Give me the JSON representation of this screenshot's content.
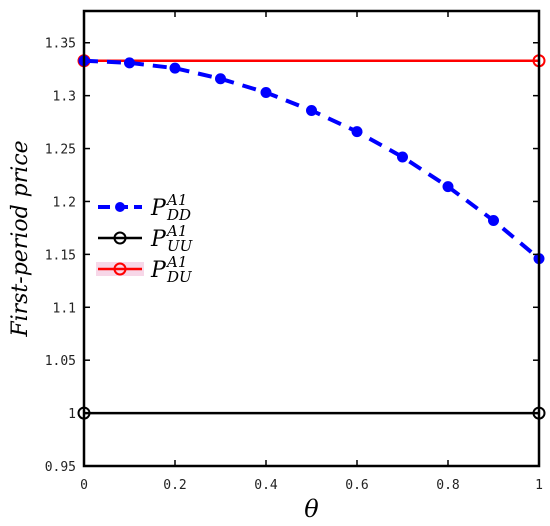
{
  "chart_data": {
    "type": "line",
    "xlabel": "θ",
    "ylabel": "First-period price",
    "xlim": [
      0,
      1
    ],
    "ylim": [
      0.95,
      1.38
    ],
    "x_ticks": [
      0,
      0.2,
      0.4,
      0.6,
      0.8,
      1
    ],
    "x_tick_labels": [
      "0",
      "0.2",
      "0.4",
      "0.6",
      "0.8",
      "1"
    ],
    "y_ticks": [
      0.95,
      1.0,
      1.05,
      1.1,
      1.15,
      1.2,
      1.25,
      1.3,
      1.35
    ],
    "y_tick_labels": [
      "0.95",
      "1",
      "1.05",
      "1.1",
      "1.15",
      "1.2",
      "1.25",
      "1.3",
      "1.35"
    ],
    "grid": false,
    "legend_position": "middle-left",
    "series": [
      {
        "label_main": "P",
        "label_sup": "A1",
        "label_sub": "DD",
        "color": "#0000ff",
        "style": "dashed",
        "marker": "filled-circle",
        "x": [
          0,
          0.1,
          0.2,
          0.3,
          0.4,
          0.5,
          0.6,
          0.7,
          0.8,
          0.9,
          1
        ],
        "values": [
          1.333,
          1.331,
          1.326,
          1.316,
          1.303,
          1.286,
          1.266,
          1.242,
          1.214,
          1.182,
          1.146
        ]
      },
      {
        "label_main": "P",
        "label_sup": "A1",
        "label_sub": "UU",
        "color": "#000000",
        "style": "solid",
        "marker": "open-circle",
        "x": [
          0,
          1
        ],
        "values": [
          1.0,
          1.0
        ]
      },
      {
        "label_main": "P",
        "label_sup": "A1",
        "label_sub": "DU",
        "color": "#ff0000",
        "style": "solid",
        "marker": "open-circle",
        "x": [
          0,
          1
        ],
        "values": [
          1.333,
          1.333
        ]
      }
    ]
  }
}
